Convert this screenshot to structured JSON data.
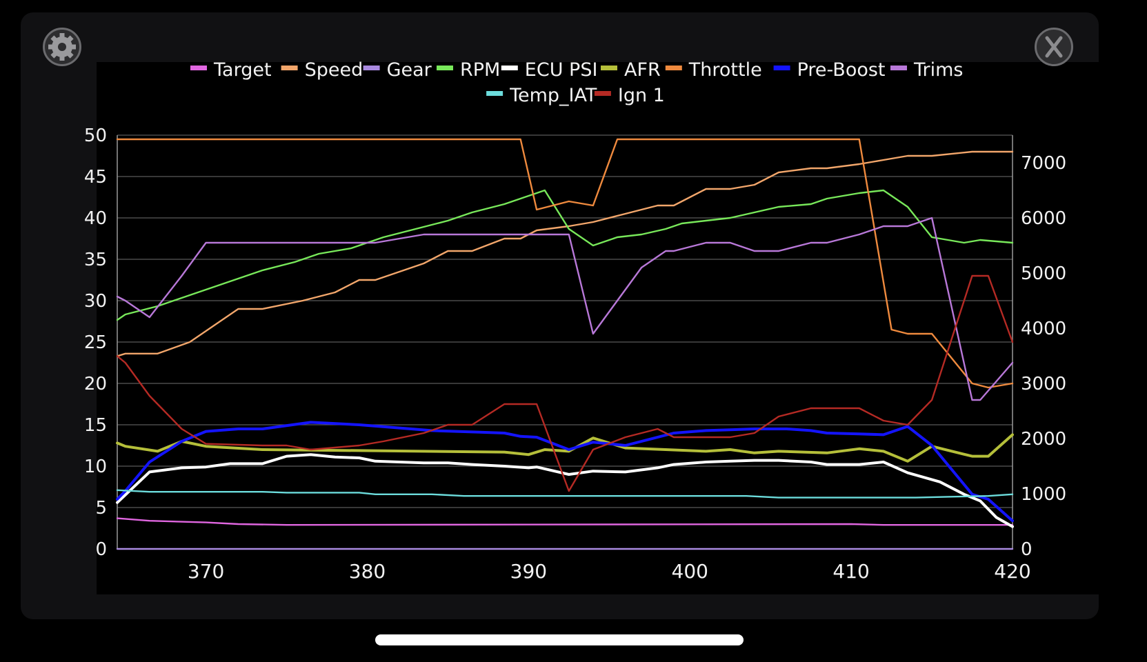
{
  "ui": {
    "settings_icon": "gear-icon",
    "close_icon": "close-x-icon"
  },
  "chart_data": {
    "type": "line",
    "title": "",
    "xlabel": "",
    "ylabel": "",
    "xlim": [
      364.5,
      420
    ],
    "ylim_left": [
      0,
      50
    ],
    "ylim_right": [
      0,
      7500
    ],
    "x_ticks": [
      370,
      380,
      390,
      400,
      410,
      420
    ],
    "y_ticks_left": [
      0,
      5,
      10,
      15,
      20,
      25,
      30,
      35,
      40,
      45,
      50
    ],
    "y_ticks_right": [
      0,
      1000,
      2000,
      3000,
      4000,
      5000,
      6000,
      7000
    ],
    "grid": true,
    "legend_position": "top",
    "series": [
      {
        "name": "Target",
        "color": "#e066e0",
        "axis": "left",
        "x": [
          364.5,
          366.5,
          370,
          372,
          375,
          410,
          412,
          420
        ],
        "y": [
          3.7,
          3.4,
          3.2,
          3.0,
          2.9,
          3.0,
          2.9,
          2.9
        ]
      },
      {
        "name": "Speed",
        "color": "#f2a66b",
        "axis": "left",
        "x": [
          364.5,
          365,
          367,
          369,
          372,
          373.5,
          376,
          378,
          379.5,
          380.5,
          383.5,
          385,
          386.5,
          388.5,
          389.5,
          390.5,
          392.5,
          394,
          396,
          398,
          399,
          401,
          402.5,
          404,
          405.5,
          407.5,
          408.5,
          410.5,
          412,
          413.5,
          415,
          417.5,
          419,
          420
        ],
        "y": [
          23.3,
          23.6,
          23.6,
          25.0,
          29.0,
          29.0,
          30.0,
          31.0,
          32.5,
          32.5,
          34.5,
          36.0,
          36.0,
          37.5,
          37.5,
          38.5,
          39.0,
          39.5,
          40.5,
          41.5,
          41.5,
          43.5,
          43.5,
          44.0,
          45.5,
          46.0,
          46.0,
          46.5,
          47.0,
          47.5,
          47.5,
          48.0,
          48.0,
          48.0
        ]
      },
      {
        "name": "Gear",
        "color": "#a98ae0",
        "axis": "left",
        "x": [
          364.5,
          420
        ],
        "y": [
          0,
          0
        ]
      },
      {
        "name": "RPM",
        "color": "#78e85a",
        "axis": "right",
        "x": [
          364.5,
          365,
          367,
          368.5,
          370,
          372,
          373.5,
          375.5,
          377,
          379,
          379.5,
          381,
          383,
          385,
          386.5,
          388.5,
          389.5,
          391,
          392.5,
          394,
          395.5,
          397,
          398.5,
          399.5,
          401,
          402.5,
          404,
          405.5,
          407.5,
          408.5,
          410.5,
          412,
          413.5,
          415,
          417,
          418,
          420
        ],
        "y": [
          4150,
          4250,
          4400,
          4550,
          4700,
          4900,
          5050,
          5200,
          5350,
          5450,
          5500,
          5650,
          5800,
          5950,
          6100,
          6250,
          6350,
          6500,
          5800,
          5500,
          5650,
          5700,
          5800,
          5900,
          5950,
          6000,
          6100,
          6200,
          6250,
          6350,
          6450,
          6500,
          6200,
          5650,
          5550,
          5600,
          5550
        ]
      },
      {
        "name": "ECU PSI",
        "color": "#ffffff",
        "axis": "left",
        "x": [
          364.5,
          366.5,
          368.5,
          370,
          371.5,
          373.5,
          375,
          376.5,
          378,
          379.5,
          380.5,
          383.5,
          385,
          386.5,
          388.5,
          390,
          390.5,
          392.5,
          394,
          396,
          398,
          399,
          401,
          402.5,
          404,
          405.5,
          407.5,
          408.5,
          410.5,
          412,
          413.5,
          415.5,
          417,
          418,
          419,
          420
        ],
        "y": [
          5.6,
          9.3,
          9.8,
          9.9,
          10.3,
          10.3,
          11.2,
          11.4,
          11.1,
          11.0,
          10.6,
          10.4,
          10.4,
          10.2,
          10.0,
          9.8,
          9.9,
          9.0,
          9.4,
          9.3,
          9.8,
          10.2,
          10.5,
          10.6,
          10.7,
          10.7,
          10.5,
          10.2,
          10.2,
          10.5,
          9.2,
          8.1,
          6.6,
          5.8,
          3.8,
          2.7
        ]
      },
      {
        "name": "AFR",
        "color": "#b5bf3a",
        "axis": "left",
        "x": [
          364.5,
          365,
          367,
          368.5,
          370,
          373.5,
          388.5,
          390,
          391,
          392.5,
          394,
          396,
          398.5,
          401,
          402.5,
          404,
          405.5,
          408.5,
          410.5,
          412,
          413.5,
          415,
          417.5,
          418.5,
          420
        ],
        "y": [
          12.8,
          12.4,
          11.8,
          13.0,
          12.4,
          12.0,
          11.7,
          11.4,
          12.0,
          11.8,
          13.4,
          12.2,
          12.0,
          11.8,
          12.0,
          11.6,
          11.8,
          11.6,
          12.1,
          11.8,
          10.6,
          12.4,
          11.2,
          11.2,
          13.8
        ]
      },
      {
        "name": "Throttle",
        "color": "#ef8a3e",
        "axis": "left",
        "x": [
          364.5,
          389.5,
          390.5,
          392.5,
          394,
          395.5,
          410.5,
          411.5,
          412.5,
          413.5,
          415,
          417.5,
          418.5,
          420
        ],
        "y": [
          49.5,
          49.5,
          41.0,
          42.0,
          41.5,
          49.5,
          49.5,
          38.0,
          26.5,
          26.0,
          26.0,
          20.0,
          19.5,
          20.0
        ]
      },
      {
        "name": "Pre-Boost",
        "color": "#1414ff",
        "axis": "left",
        "x": [
          364.5,
          365,
          366.5,
          368.5,
          370,
          372,
          373.5,
          376.5,
          379.5,
          384,
          387,
          388.5,
          389.5,
          390.5,
          392.5,
          394,
          396,
          399,
          401,
          402.5,
          404,
          406,
          407.5,
          408.5,
          410.5,
          412,
          413.5,
          415,
          417.5,
          418.5,
          420
        ],
        "y": [
          6.0,
          7.0,
          10.5,
          13.0,
          14.2,
          14.5,
          14.5,
          15.3,
          15.0,
          14.3,
          14.1,
          14.0,
          13.6,
          13.5,
          12.0,
          12.9,
          12.5,
          14.0,
          14.3,
          14.4,
          14.5,
          14.5,
          14.3,
          14.0,
          13.9,
          13.8,
          14.8,
          12.5,
          6.6,
          6.0,
          3.4
        ]
      },
      {
        "name": "Trims",
        "color": "#b878d8",
        "axis": "left",
        "x": [
          364.5,
          365,
          366.5,
          368.5,
          370,
          373.5,
          380.5,
          382,
          383.5,
          392.5,
          394,
          395.5,
          397,
          398.5,
          399,
          401,
          402.5,
          404,
          405.5,
          407.5,
          408.5,
          410.5,
          412,
          413.5,
          415,
          417.5,
          418,
          420
        ],
        "y": [
          30.5,
          30.0,
          28.0,
          33.0,
          37.0,
          37.0,
          37.0,
          37.5,
          38.0,
          38.0,
          26.0,
          30.0,
          34.0,
          36.0,
          36.0,
          37.0,
          37.0,
          36.0,
          36.0,
          37.0,
          37.0,
          38.0,
          39.0,
          39.0,
          40.0,
          18.0,
          18.0,
          22.5
        ]
      },
      {
        "name": "Temp_IAT",
        "color": "#6cdcdc",
        "axis": "left",
        "x": [
          364.5,
          366.5,
          373.5,
          375,
          379.5,
          380.5,
          384,
          386,
          403.5,
          405.5,
          414,
          416,
          418.5,
          420
        ],
        "y": [
          7.1,
          6.9,
          6.9,
          6.8,
          6.8,
          6.6,
          6.6,
          6.4,
          6.4,
          6.2,
          6.2,
          6.3,
          6.4,
          6.6
        ]
      },
      {
        "name": "Ign 1",
        "color": "#b52a24",
        "axis": "left",
        "x": [
          364.5,
          365,
          366.5,
          368.5,
          370,
          373.5,
          375,
          376.5,
          379.5,
          381,
          383.5,
          385,
          386.5,
          388.5,
          390.5,
          392.5,
          394,
          396,
          398,
          399,
          401,
          402.5,
          404,
          405.5,
          407.5,
          409,
          410.5,
          412,
          413.5,
          415,
          416.5,
          417.5,
          418.5,
          420
        ],
        "y": [
          23.3,
          22.5,
          18.5,
          14.5,
          12.7,
          12.5,
          12.5,
          12.0,
          12.5,
          13.0,
          14.0,
          15.0,
          15.0,
          17.5,
          17.5,
          7.0,
          12.0,
          13.5,
          14.5,
          13.5,
          13.5,
          13.5,
          14.0,
          16.0,
          17.0,
          17.0,
          17.0,
          15.5,
          15.0,
          18.0,
          27.0,
          33.0,
          33.0,
          25.0
        ]
      }
    ]
  }
}
